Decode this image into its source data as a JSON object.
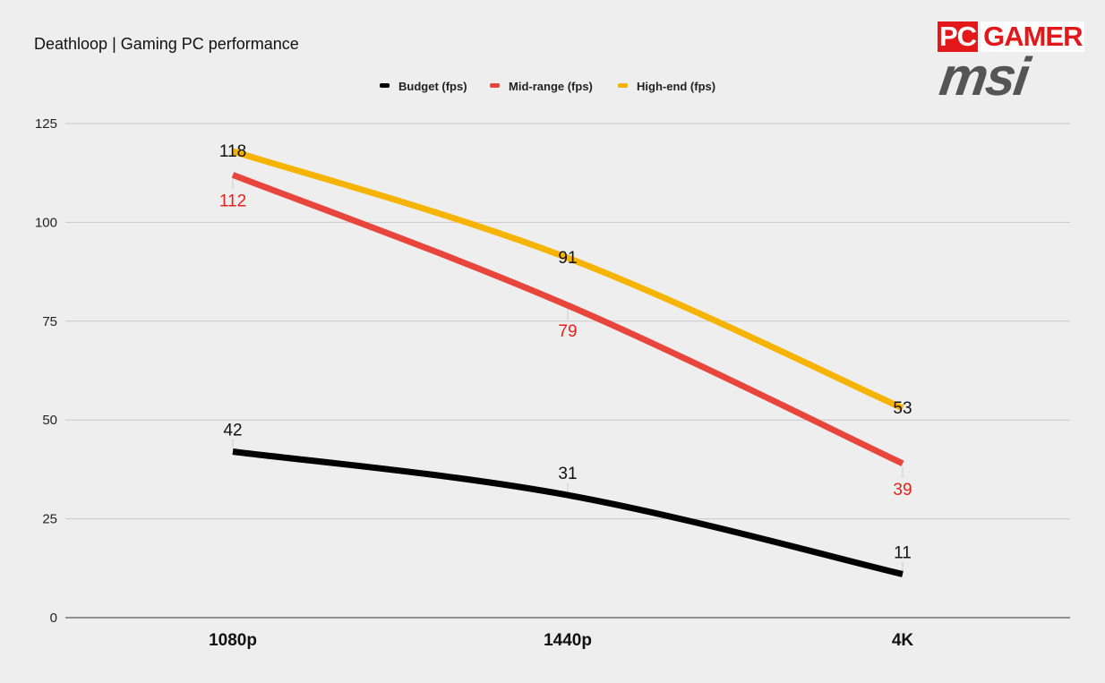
{
  "logo": {
    "pc": "PC",
    "gamer": "GAMER",
    "msi": "msi"
  },
  "colors": {
    "background": "#eeeeee",
    "grid": "#c8c8c8",
    "budget": "#000000",
    "midrange": "#e8453c",
    "highend": "#f6b400",
    "midrange_label": "#e8201a"
  },
  "chart_data": {
    "type": "line",
    "title": "Deathloop | Gaming PC performance",
    "xlabel": "",
    "ylabel": "",
    "categories": [
      "1080p",
      "1440p",
      "4K"
    ],
    "ylim": [
      0,
      125
    ],
    "yticks": [
      "0",
      "25",
      "50",
      "75",
      "100",
      "125"
    ],
    "grid": true,
    "legend_position": "top",
    "series": [
      {
        "name": "Budget (fps)",
        "values": [
          42,
          31,
          11
        ],
        "color": "#000000",
        "label_color": "#111111",
        "label_side": "above"
      },
      {
        "name": "Mid-range (fps)",
        "values": [
          112,
          79,
          39
        ],
        "color": "#e8453c",
        "label_color": "#e8201a",
        "label_side": "below"
      },
      {
        "name": "High-end (fps)",
        "values": [
          118,
          91,
          53
        ],
        "color": "#f6b400",
        "label_color": "#111111",
        "label_side": "center"
      }
    ]
  }
}
